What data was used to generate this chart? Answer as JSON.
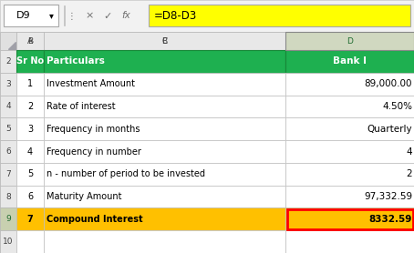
{
  "title_bar": {
    "cell_ref": "D9",
    "formula": "=D8-D3",
    "formula_bg": "#FFFF00"
  },
  "col_headers": [
    "Sr No",
    "Particulars",
    "Bank I"
  ],
  "header_bg": "#1EB050",
  "header_text_color": "#FFFFFF",
  "rows": [
    {
      "sr": "1",
      "particular": "Investment Amount",
      "value": "89,000.00"
    },
    {
      "sr": "2",
      "particular": "Rate of interest",
      "value": "4.50%"
    },
    {
      "sr": "3",
      "particular": "Frequency in months",
      "value": "Quarterly"
    },
    {
      "sr": "4",
      "particular": "Frequency in number",
      "value": "4"
    },
    {
      "sr": "5",
      "particular": "n - number of period to be invested",
      "value": "2"
    },
    {
      "sr": "6",
      "particular": "Maturity Amount",
      "value": "97,332.59"
    },
    {
      "sr": "7",
      "particular": "Compound Interest",
      "value": "8332.59"
    }
  ],
  "last_row_bg": "#FFC000",
  "last_row_text_color": "#000000",
  "last_row_value_border_color": "#FF0000",
  "normal_row_bg": "#FFFFFF",
  "normal_text_color": "#000000",
  "grid_color": "#C0C0C0",
  "formula_bar_bg": "#F2F2F2",
  "cell_name_bg": "#FFFFFF",
  "spreadsheet_bg": "#C8C8C8",
  "col_header_bg": "#E8E8E8",
  "col_header_selected_bg": "#D0D8C0",
  "row_num_bg": "#E8E8E8",
  "row_num_selected_bg": "#C8D0B0",
  "col_header_selected_text": "#1E6B30"
}
